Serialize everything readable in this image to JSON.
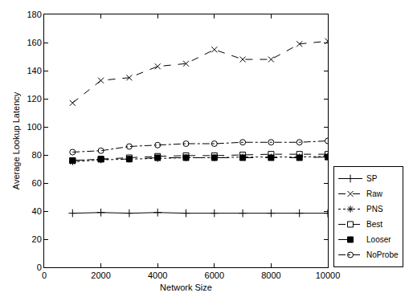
{
  "chart_data": {
    "type": "line",
    "x_label": "Network Size",
    "y_label": "Average Lookup Latency",
    "x": [
      1000,
      2000,
      3000,
      4000,
      5000,
      6000,
      7000,
      8000,
      9000,
      10000
    ],
    "xlim": [
      0,
      10000
    ],
    "xticks": [
      0,
      2000,
      4000,
      6000,
      8000,
      10000
    ],
    "ylim": [
      0,
      180
    ],
    "yticks": [
      0,
      20,
      40,
      60,
      80,
      100,
      120,
      140,
      160,
      180
    ],
    "grid": false,
    "legend": "right",
    "series": [
      {
        "name": "SP",
        "color": "#000000",
        "marker": "plus",
        "line_style": "solid",
        "values": [
          38.5,
          39,
          38.5,
          39,
          38.5,
          38.5,
          38.5,
          38.5,
          38.5,
          38.5
        ]
      },
      {
        "name": "Raw",
        "color": "#000000",
        "marker": "x",
        "line_style": "dash",
        "values": [
          117,
          133,
          135,
          143,
          145,
          155,
          148,
          148,
          159,
          161
        ]
      },
      {
        "name": "PNS",
        "color": "#000000",
        "marker": "asterisk",
        "line_style": "dot",
        "values": [
          75,
          76.5,
          77,
          77.5,
          78,
          78,
          78.5,
          78.5,
          78.5,
          79
        ]
      },
      {
        "name": "Best",
        "color": "#000000",
        "marker": "square-open",
        "line_style": "dash",
        "values": [
          76,
          77,
          78,
          79,
          79.5,
          79.5,
          80,
          80.5,
          80.5,
          80.5
        ]
      },
      {
        "name": "Looser",
        "color": "#000000",
        "marker": "square",
        "line_style": "longdash",
        "values": [
          76,
          77,
          77,
          78,
          78,
          78,
          78,
          78,
          78,
          78.5
        ]
      },
      {
        "name": "NoProbe",
        "color": "#000000",
        "marker": "circle-open",
        "line_style": "dashdot",
        "values": [
          82,
          83,
          86,
          87,
          88,
          88,
          89,
          89,
          89,
          90
        ]
      }
    ]
  }
}
